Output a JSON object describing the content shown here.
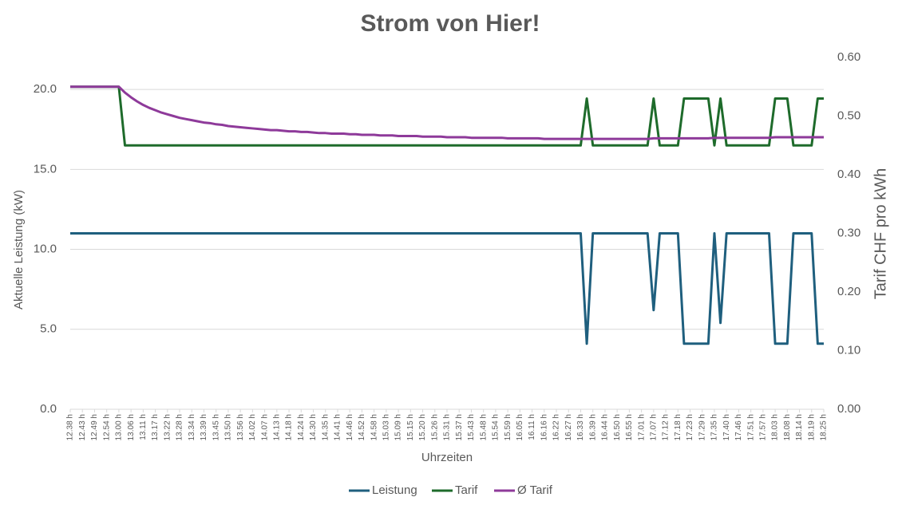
{
  "chart_data": {
    "type": "line",
    "title": "Strom von Hier!",
    "x_label": "Uhrzeiten",
    "y_label": "Aktuelle Leistung (kW)",
    "y2_label": "Tarif CHF pro kWh",
    "grid": true,
    "legend": "bottom",
    "ylim": [
      0,
      22
    ],
    "yticks": [
      {
        "value": 0,
        "label": "0.0"
      },
      {
        "value": 5,
        "label": "5.0"
      },
      {
        "value": 10,
        "label": "10.0"
      },
      {
        "value": 15,
        "label": "15.0"
      },
      {
        "value": 20,
        "label": "20.0"
      }
    ],
    "y2lim": [
      0,
      0.6
    ],
    "y2ticks": [
      {
        "value": 0,
        "label": "0.00"
      },
      {
        "value": 0.1,
        "label": "0.10"
      },
      {
        "value": 0.2,
        "label": "0.20"
      },
      {
        "value": 0.3,
        "label": "0.30"
      },
      {
        "value": 0.4,
        "label": "0.40"
      },
      {
        "value": 0.5,
        "label": "0.50"
      },
      {
        "value": 0.6,
        "label": "0.60"
      }
    ],
    "categories": [
      "12.38 h",
      null,
      "12.43 h",
      null,
      "12.49 h",
      null,
      "12.54 h",
      null,
      "13.00 h",
      null,
      "13.06 h",
      null,
      "13.11 h",
      null,
      "13.17 h",
      null,
      "13.22 h",
      null,
      "13.28 h",
      null,
      "13.34 h",
      null,
      "13.39 h",
      null,
      "13.45 h",
      null,
      "13.50 h",
      null,
      "13.56 h",
      null,
      "14.02 h",
      null,
      "14.07 h",
      null,
      "14.13 h",
      null,
      "14.18 h",
      null,
      "14.24 h",
      null,
      "14.30 h",
      null,
      "14.35 h",
      null,
      "14.41 h",
      null,
      "14.46 h",
      null,
      "14.52 h",
      null,
      "14.58 h",
      null,
      "15.03 h",
      null,
      "15.09 h",
      null,
      "15.15 h",
      null,
      "15.20 h",
      null,
      "15.26 h",
      null,
      "15.31 h",
      null,
      "15.37 h",
      null,
      "15.43 h",
      null,
      "15.48 h",
      null,
      "15.54 h",
      null,
      "15.59 h",
      null,
      "16.05 h",
      null,
      "16.11 h",
      null,
      "16.16 h",
      null,
      "16.22 h",
      null,
      "16.27 h",
      null,
      "16.33 h",
      null,
      "16.39 h",
      null,
      "16.44 h",
      null,
      "16.50 h",
      null,
      "16.55 h",
      null,
      "17.01 h",
      null,
      "17.07 h",
      null,
      "17.12 h",
      null,
      "17.18 h",
      null,
      "17.23 h",
      null,
      "17.29 h",
      null,
      "17.35 h",
      null,
      "17.40 h",
      null,
      "17.46 h",
      null,
      "17.51 h",
      null,
      "17.57 h",
      null,
      "18.03 h",
      null,
      "18.08 h",
      null,
      "18.14 h",
      null,
      "18.19 h",
      null,
      "18.25 h"
    ],
    "series": [
      {
        "name": "Leistung",
        "color": "#1f5f7e",
        "axis": "y",
        "values": [
          11,
          11,
          11,
          11,
          11,
          11,
          11,
          11,
          11,
          11,
          11,
          11,
          11,
          11,
          11,
          11,
          11,
          11,
          11,
          11,
          11,
          11,
          11,
          11,
          11,
          11,
          11,
          11,
          11,
          11,
          11,
          11,
          11,
          11,
          11,
          11,
          11,
          11,
          11,
          11,
          11,
          11,
          11,
          11,
          11,
          11,
          11,
          11,
          11,
          11,
          11,
          11,
          11,
          11,
          11,
          11,
          11,
          11,
          11,
          11,
          11,
          11,
          11,
          11,
          11,
          11,
          11,
          11,
          11,
          11,
          11,
          11,
          11,
          11,
          11,
          11,
          11,
          11,
          11,
          11,
          11,
          11,
          11,
          11,
          11,
          4.1,
          11,
          11,
          11,
          11,
          11,
          11,
          11,
          11,
          11,
          11,
          6.2,
          11,
          11,
          11,
          11,
          4.1,
          4.1,
          4.1,
          4.1,
          4.1,
          11,
          5.4,
          11,
          11,
          11,
          11,
          11,
          11,
          11,
          11,
          4.1,
          4.1,
          4.1,
          11,
          11,
          11,
          11,
          4.1,
          4.1
        ]
      },
      {
        "name": "Tarif",
        "color": "#1e6b2b",
        "axis": "y2",
        "values": [
          0.55,
          0.55,
          0.55,
          0.55,
          0.55,
          0.55,
          0.55,
          0.55,
          0.55,
          0.45,
          0.45,
          0.45,
          0.45,
          0.45,
          0.45,
          0.45,
          0.45,
          0.45,
          0.45,
          0.45,
          0.45,
          0.45,
          0.45,
          0.45,
          0.45,
          0.45,
          0.45,
          0.45,
          0.45,
          0.45,
          0.45,
          0.45,
          0.45,
          0.45,
          0.45,
          0.45,
          0.45,
          0.45,
          0.45,
          0.45,
          0.45,
          0.45,
          0.45,
          0.45,
          0.45,
          0.45,
          0.45,
          0.45,
          0.45,
          0.45,
          0.45,
          0.45,
          0.45,
          0.45,
          0.45,
          0.45,
          0.45,
          0.45,
          0.45,
          0.45,
          0.45,
          0.45,
          0.45,
          0.45,
          0.45,
          0.45,
          0.45,
          0.45,
          0.45,
          0.45,
          0.45,
          0.45,
          0.45,
          0.45,
          0.45,
          0.45,
          0.45,
          0.45,
          0.45,
          0.45,
          0.45,
          0.45,
          0.45,
          0.45,
          0.45,
          0.53,
          0.45,
          0.45,
          0.45,
          0.45,
          0.45,
          0.45,
          0.45,
          0.45,
          0.45,
          0.45,
          0.53,
          0.45,
          0.45,
          0.45,
          0.45,
          0.53,
          0.53,
          0.53,
          0.53,
          0.53,
          0.45,
          0.53,
          0.45,
          0.45,
          0.45,
          0.45,
          0.45,
          0.45,
          0.45,
          0.45,
          0.53,
          0.53,
          0.53,
          0.45,
          0.45,
          0.45,
          0.45,
          0.53,
          0.53
        ]
      },
      {
        "name": "Ø Tarif",
        "color": "#8e3a9a",
        "axis": "y2",
        "values": [
          0.55,
          0.55,
          0.55,
          0.55,
          0.55,
          0.55,
          0.55,
          0.55,
          0.55,
          0.54,
          0.532,
          0.525,
          0.519,
          0.514,
          0.51,
          0.506,
          0.503,
          0.5,
          0.497,
          0.495,
          0.493,
          0.491,
          0.489,
          0.488,
          0.486,
          0.485,
          0.483,
          0.482,
          0.481,
          0.48,
          0.479,
          0.478,
          0.477,
          0.476,
          0.476,
          0.475,
          0.474,
          0.474,
          0.473,
          0.473,
          0.472,
          0.471,
          0.471,
          0.47,
          0.47,
          0.47,
          0.469,
          0.469,
          0.468,
          0.468,
          0.468,
          0.467,
          0.467,
          0.467,
          0.466,
          0.466,
          0.466,
          0.466,
          0.465,
          0.465,
          0.465,
          0.465,
          0.464,
          0.464,
          0.464,
          0.464,
          0.463,
          0.463,
          0.463,
          0.463,
          0.463,
          0.463,
          0.462,
          0.462,
          0.462,
          0.462,
          0.462,
          0.462,
          0.461,
          0.461,
          0.461,
          0.461,
          0.461,
          0.461,
          0.461,
          0.461,
          0.461,
          0.461,
          0.461,
          0.461,
          0.461,
          0.461,
          0.461,
          0.461,
          0.461,
          0.461,
          0.462,
          0.462,
          0.462,
          0.462,
          0.462,
          0.462,
          0.462,
          0.462,
          0.462,
          0.462,
          0.463,
          0.463,
          0.463,
          0.463,
          0.463,
          0.463,
          0.463,
          0.463,
          0.463,
          0.463,
          0.464,
          0.464,
          0.464,
          0.464,
          0.464,
          0.464,
          0.464,
          0.464,
          0.464
        ]
      }
    ]
  }
}
